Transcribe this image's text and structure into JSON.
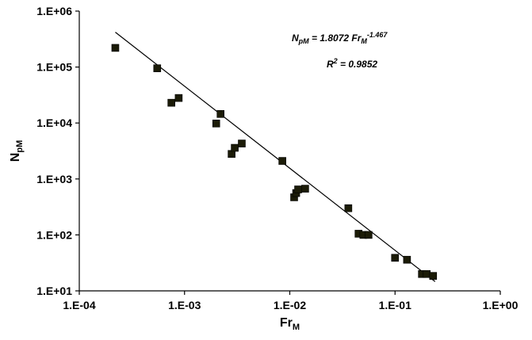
{
  "chart_data": {
    "type": "scatter",
    "scale": "log-log",
    "xlabel": {
      "main": "Fr",
      "sub": "M"
    },
    "ylabel": {
      "main": "N",
      "sub": "pM"
    },
    "xlim": [
      0.0001,
      1
    ],
    "ylim": [
      10,
      1000000
    ],
    "x_ticks": [
      0.0001,
      0.001,
      0.01,
      0.1,
      1
    ],
    "x_tick_labels": [
      "1.E-04",
      "1.E-03",
      "1.E-02",
      "1.E-01",
      "1.E+00"
    ],
    "y_ticks": [
      10,
      100,
      1000,
      10000,
      100000,
      1000000
    ],
    "y_tick_labels": [
      "1.E+01",
      "1.E+02",
      "1.E+03",
      "1.E+04",
      "1.E+05",
      "1.E+06"
    ],
    "grid": false,
    "marker": "square",
    "marker_color": "#1b1b07",
    "points": [
      [
        0.00022,
        220000
      ],
      [
        0.00055,
        95000
      ],
      [
        0.00075,
        23000
      ],
      [
        0.00088,
        28000
      ],
      [
        0.002,
        9800
      ],
      [
        0.0022,
        14500
      ],
      [
        0.0028,
        2800
      ],
      [
        0.003,
        3600
      ],
      [
        0.0035,
        4300
      ],
      [
        0.0085,
        2100
      ],
      [
        0.011,
        470
      ],
      [
        0.0115,
        560
      ],
      [
        0.012,
        650
      ],
      [
        0.014,
        670
      ],
      [
        0.036,
        300
      ],
      [
        0.045,
        105
      ],
      [
        0.05,
        100
      ],
      [
        0.056,
        100
      ],
      [
        0.1,
        39
      ],
      [
        0.13,
        36
      ],
      [
        0.18,
        20
      ],
      [
        0.2,
        20
      ],
      [
        0.23,
        18.5
      ]
    ],
    "fit": {
      "coefficient": 1.8072,
      "exponent": -1.467,
      "x_range": [
        0.00022,
        0.24
      ],
      "equation": {
        "lhs_main": "N",
        "lhs_sub": "pM",
        "rhs_value": " = 1.8072 Fr",
        "rhs_sub": "M",
        "rhs_sup": "-1.467"
      },
      "r2": {
        "label": "R",
        "sup": "2",
        "value": " = 0.9852"
      }
    }
  }
}
